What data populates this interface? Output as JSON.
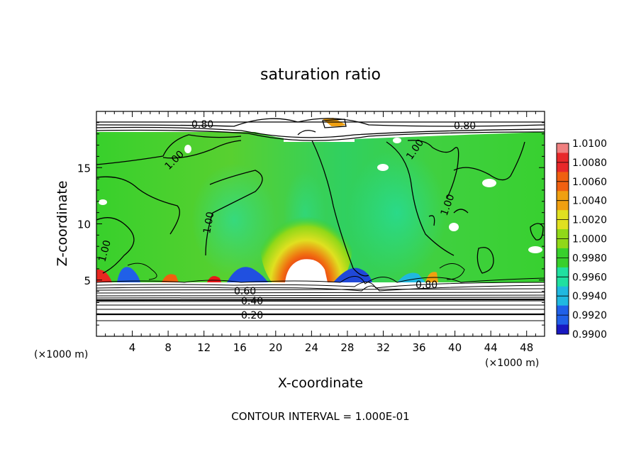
{
  "chart_data": {
    "type": "heatmap",
    "title": "saturation ratio",
    "xlabel": "X-coordinate",
    "ylabel": "Z-coordinate",
    "x_unit": "(×1000 m)",
    "z_unit": "(×1000 m)",
    "xlim": [
      0,
      50
    ],
    "ylim": [
      0,
      20
    ],
    "x_ticks": [
      "4",
      "8",
      "12",
      "16",
      "20",
      "24",
      "28",
      "32",
      "36",
      "40",
      "44",
      "48"
    ],
    "y_ticks": [
      "5",
      "10",
      "15"
    ],
    "footer": "CONTOUR INTERVAL = 1.000E-01",
    "colorbar": {
      "levels": [
        "1.0100",
        "1.0080",
        "1.0060",
        "1.0040",
        "1.0020",
        "1.0000",
        "0.9980",
        "0.9960",
        "0.9940",
        "0.9920",
        "0.9900"
      ],
      "colors": [
        "#f08080",
        "#e8282a",
        "#f06010",
        "#f0a010",
        "#e0e020",
        "#90d818",
        "#38d02c",
        "#20e0a0",
        "#20b8e0",
        "#2060e8",
        "#1818c0",
        "#5010a0"
      ]
    },
    "contour_labels": [
      {
        "text": "0.80",
        "x": 24,
        "z": 18.7
      },
      {
        "text": "0.80",
        "x": 66,
        "z": 18.7
      },
      {
        "text": "1.00",
        "x": 14,
        "z": 15.5
      },
      {
        "text": "1.00",
        "x": 18,
        "z": 12.5
      },
      {
        "text": "1.00",
        "x": 8,
        "z": 8.5
      },
      {
        "text": "1.00",
        "x": 63,
        "z": 17
      },
      {
        "text": "1.00",
        "x": 79,
        "z": 14
      },
      {
        "text": "0.60",
        "x": 34,
        "z": 4
      },
      {
        "text": "0.40",
        "x": 34,
        "z": 3
      },
      {
        "text": "0.20",
        "x": 34,
        "z": 1.7
      },
      {
        "text": "0.80",
        "x": 70,
        "z": 4.6
      }
    ]
  }
}
